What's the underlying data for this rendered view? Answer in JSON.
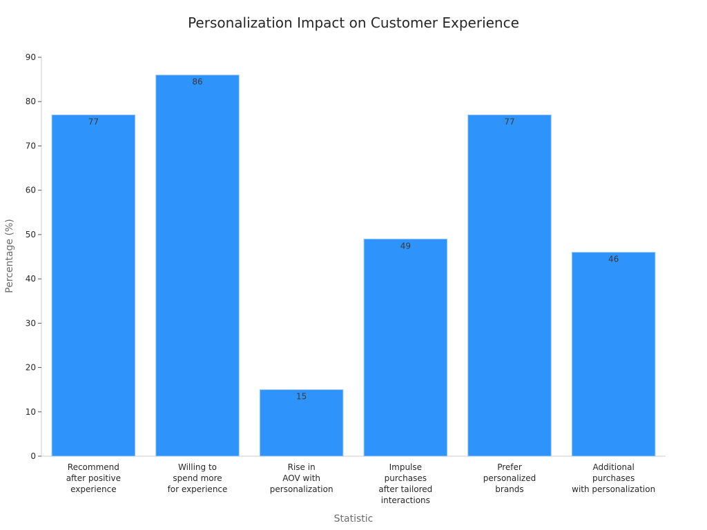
{
  "chart_data": {
    "type": "bar",
    "title": "Personalization Impact on Customer Experience",
    "xlabel": "Statistic",
    "ylabel": "Percentage (%)",
    "ylim": [
      0,
      90
    ],
    "yticks": [
      0,
      10,
      20,
      30,
      40,
      50,
      60,
      70,
      80,
      90
    ],
    "categories": [
      [
        "Recommend",
        "after positive",
        "experience"
      ],
      [
        "Willing to",
        "spend more",
        "for experience"
      ],
      [
        "Rise in",
        "AOV with",
        "personalization"
      ],
      [
        "Impulse",
        "purchases",
        "after tailored",
        "interactions"
      ],
      [
        "Prefer",
        "personalized",
        "brands"
      ],
      [
        "Additional",
        "purchases",
        "with personalization"
      ]
    ],
    "values": [
      77,
      86,
      15,
      49,
      77,
      46
    ],
    "bar_color": "#2e93fa",
    "grid": false,
    "legend": "none"
  }
}
